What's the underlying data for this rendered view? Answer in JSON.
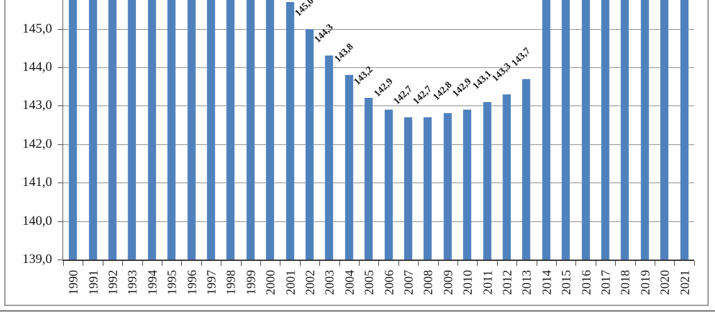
{
  "chart_data": {
    "type": "bar",
    "title": "",
    "xlabel": "",
    "ylabel": "",
    "decimal_separator": ",",
    "bar_color": "#4f81bd",
    "grid": true,
    "legend": "none",
    "ylim_visible": [
      139.0,
      145.75
    ],
    "y_tick_labels": [
      "145,0",
      "144,0",
      "143,0",
      "142,0",
      "141,0",
      "140,0",
      "139,0"
    ],
    "y_tick_values": [
      145.0,
      144.0,
      143.0,
      142.0,
      141.0,
      140.0,
      139.0
    ],
    "categories": [
      "1990",
      "1991",
      "1992",
      "1993",
      "1994",
      "1995",
      "1996",
      "1997",
      "1998",
      "1999",
      "2000",
      "2001",
      "2002",
      "2003",
      "2004",
      "2005",
      "2006",
      "2007",
      "2008",
      "2009",
      "2010",
      "2011",
      "2012",
      "2013",
      "2014",
      "2015",
      "2016",
      "2017",
      "2018",
      "2019",
      "2020",
      "2021"
    ],
    "values": [
      null,
      null,
      null,
      null,
      null,
      null,
      null,
      null,
      null,
      null,
      null,
      145.7,
      145.0,
      144.3,
      143.8,
      143.2,
      142.9,
      142.7,
      142.7,
      142.8,
      142.9,
      143.1,
      143.3,
      143.7,
      null,
      null,
      null,
      null,
      null,
      null,
      null,
      null
    ],
    "data_labels": [
      null,
      null,
      null,
      null,
      null,
      null,
      null,
      null,
      null,
      null,
      null,
      null,
      "145,0",
      "144,3",
      "143,8",
      "143,2",
      "142,9",
      "142,7",
      "142,7",
      "142,8",
      "142,9",
      "143,1",
      "143,3",
      "143,7",
      null,
      null,
      null,
      null,
      null,
      null,
      null,
      null
    ],
    "clipped_note": "bars with null values extend beyond the top edge of the cropped screenshot"
  }
}
